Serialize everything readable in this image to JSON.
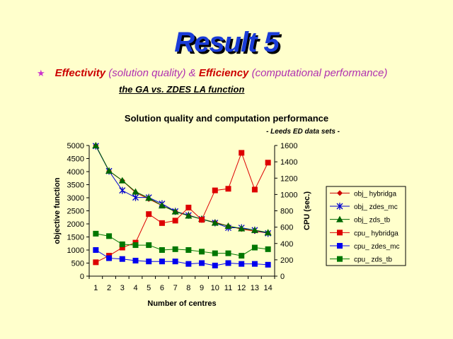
{
  "slide": {
    "title": "Result 5",
    "bullet_star": "★",
    "bullet": {
      "part1": "Effectivity",
      "part2": " (solution quality) & ",
      "part3": "Efficiency",
      "part4": " (computational performance)"
    },
    "subtitle": "the GA vs. ZDES LA function"
  },
  "chart_data": {
    "type": "line",
    "title": "Solution quality and computation performance",
    "subtitle": "- Leeds ED data sets -",
    "xlabel": "Number of centres",
    "ylabel": "objective function",
    "y2label": "CPU (sec.)",
    "categories": [
      1,
      2,
      3,
      4,
      5,
      6,
      7,
      8,
      9,
      10,
      11,
      12,
      13,
      14
    ],
    "ylim": [
      0,
      5000
    ],
    "ytick_step": 500,
    "y2lim": [
      0,
      1600
    ],
    "y2tick_step": 200,
    "grid": false,
    "legend_position": "right",
    "series": [
      {
        "name": "obj_ hybridga",
        "axis": "left",
        "marker": "diamond",
        "color": "#cc0000",
        "values": [
          5000,
          4020,
          3660,
          3200,
          2950,
          2700,
          2480,
          2330,
          2180,
          2060,
          1920,
          1800,
          1720,
          1650
        ]
      },
      {
        "name": "obj_ zdes_mc",
        "axis": "left",
        "marker": "star",
        "color": "#0000cc",
        "values": [
          4980,
          4020,
          3280,
          3010,
          3010,
          2770,
          2480,
          2330,
          2180,
          2040,
          1850,
          1850,
          1760,
          1640
        ]
      },
      {
        "name": "obj_ zds_tb",
        "axis": "left",
        "marker": "triangle",
        "color": "#006600",
        "values": [
          5000,
          4030,
          3660,
          3230,
          2990,
          2700,
          2470,
          2310,
          2190,
          2040,
          1920,
          1820,
          1760,
          1670
        ]
      },
      {
        "name": "cpu_ hybridga",
        "axis": "right",
        "marker": "square",
        "color": "#dd0000",
        "values": [
          170,
          250,
          350,
          410,
          760,
          650,
          680,
          840,
          690,
          1050,
          1070,
          1510,
          1060,
          1390
        ]
      },
      {
        "name": "cpu_ zdes_mc",
        "axis": "right",
        "marker": "square",
        "color": "#0000ee",
        "values": [
          320,
          220,
          210,
          190,
          180,
          180,
          180,
          150,
          160,
          130,
          160,
          150,
          150,
          140
        ]
      },
      {
        "name": "cpu_ zds_tb",
        "axis": "right",
        "marker": "square",
        "color": "#007700",
        "values": [
          520,
          490,
          390,
          380,
          380,
          320,
          330,
          320,
          300,
          280,
          280,
          250,
          350,
          330
        ]
      }
    ]
  }
}
